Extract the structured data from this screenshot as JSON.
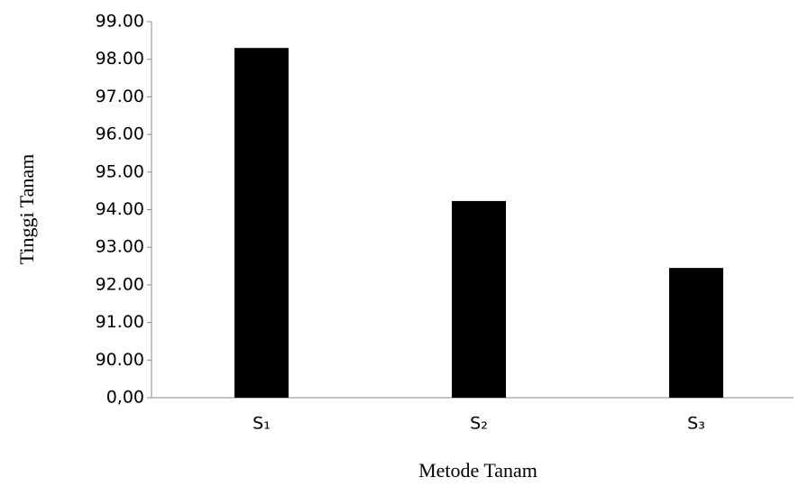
{
  "chart_data": {
    "type": "bar",
    "x_label": "Metode Tanam",
    "y_label": "Tinggi Tanam",
    "categories": [
      "S₁",
      "S₂",
      "S₃"
    ],
    "values": [
      98.3,
      94.23,
      92.45
    ],
    "color": "#000000",
    "ylim": [
      89,
      99
    ],
    "axis_break": true,
    "yticks": [
      {
        "value": 0,
        "label": "0,00"
      },
      {
        "value": 90,
        "label": "90.00"
      },
      {
        "value": 91,
        "label": "91.00"
      },
      {
        "value": 92,
        "label": "92.00"
      },
      {
        "value": 93,
        "label": "93.00"
      },
      {
        "value": 94,
        "label": "94.00"
      },
      {
        "value": 95,
        "label": "95.00"
      },
      {
        "value": 96,
        "label": "96.00"
      },
      {
        "value": 97,
        "label": "97.00"
      },
      {
        "value": 98,
        "label": "98.00"
      },
      {
        "value": 99,
        "label": "99.00"
      }
    ],
    "grid": false
  }
}
